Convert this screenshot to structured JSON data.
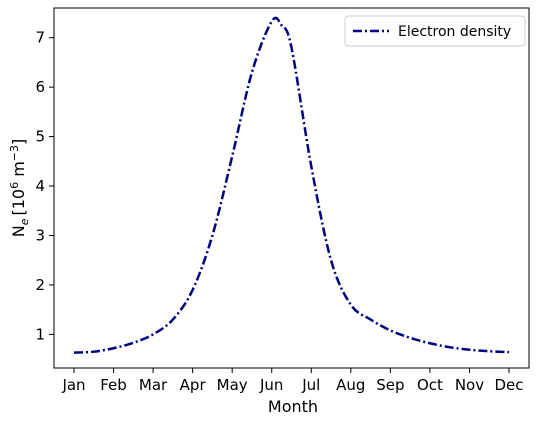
{
  "chart_data": {
    "type": "line",
    "categories": [
      "Jan",
      "Feb",
      "Mar",
      "Apr",
      "May",
      "Jun",
      "Jul",
      "Aug",
      "Sep",
      "Oct",
      "Nov",
      "Dec"
    ],
    "xlabel": "Month",
    "ylabel": {
      "base": "N",
      "subscript": "e",
      "units_prefix": "[10",
      "units_exp1": "6",
      "units_mid": " m",
      "units_exp2": "−3",
      "units_suffix": "]"
    },
    "ylim": [
      0.32,
      7.6
    ],
    "yticks": [
      "1",
      "2",
      "3",
      "4",
      "5",
      "6",
      "7"
    ],
    "legend_position": "top-right",
    "grid": false,
    "series": [
      {
        "name": "Electron density",
        "color": "#000080",
        "linestyle": "dash-dot",
        "x": [
          0,
          0.5,
          1,
          1.5,
          2,
          2.5,
          3,
          3.5,
          4,
          4.5,
          5,
          5.25,
          5.5,
          6,
          6.5,
          7,
          7.5,
          8,
          8.5,
          9,
          9.5,
          10,
          10.5,
          11
        ],
        "values": [
          0.63,
          0.65,
          0.72,
          0.83,
          1.0,
          1.3,
          1.9,
          3.0,
          4.6,
          6.3,
          7.33,
          7.25,
          6.8,
          4.4,
          2.5,
          1.6,
          1.3,
          1.08,
          0.93,
          0.82,
          0.74,
          0.69,
          0.66,
          0.64
        ]
      }
    ]
  }
}
